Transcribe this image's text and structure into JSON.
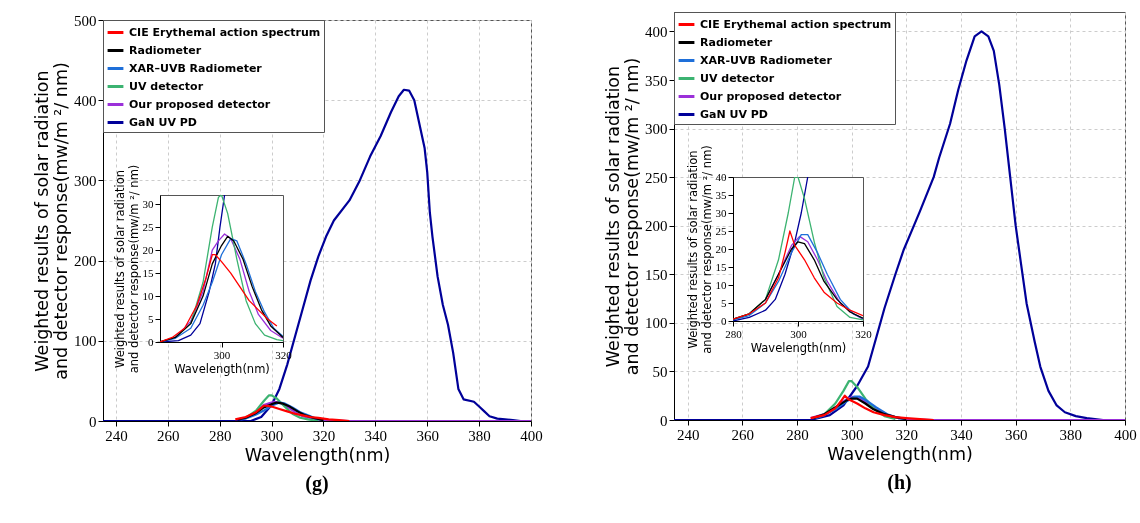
{
  "chart_data": [
    {
      "type": "line",
      "xlabel": "Wavelength(nm)",
      "ylabel": "Weighted results of solar radiation\nand detector response(mw/m ²/ nm)",
      "xlim": [
        235,
        400
      ],
      "ylim": [
        0,
        500
      ],
      "xticks": [
        240,
        260,
        280,
        300,
        320,
        340,
        360,
        380,
        400
      ],
      "yticks": [
        0,
        100,
        200,
        300,
        400,
        500
      ],
      "grid": true,
      "legend": "top left",
      "annotations": [
        "(g)"
      ],
      "series": [
        {
          "name": "CIE Erythemal action spectrum",
          "color": "#ff0000",
          "x": [
            286,
            290,
            294,
            297,
            298,
            300,
            303,
            306,
            309,
            312,
            315,
            318,
            322,
            326,
            330
          ],
          "values": [
            2,
            5,
            11,
            19,
            19,
            18,
            15,
            12,
            9,
            7,
            5,
            4,
            2,
            1,
            0
          ]
        },
        {
          "name": "Radiometer",
          "color": "#000000",
          "x": [
            287,
            290,
            294,
            297,
            300,
            302,
            304,
            307,
            310,
            313,
            316,
            320
          ],
          "values": [
            2,
            4,
            10,
            17,
            21,
            23,
            22,
            18,
            12,
            7,
            4,
            1
          ]
        },
        {
          "name": "XAR–UVB Radiometer",
          "color": "#1e6fd9",
          "x": [
            288,
            290,
            294,
            297,
            300,
            303,
            305,
            308,
            311,
            314,
            317,
            320
          ],
          "values": [
            2,
            3,
            8,
            13,
            19,
            23,
            22,
            17,
            11,
            7,
            3,
            1
          ]
        },
        {
          "name": "UV detector",
          "color": "#3cb371",
          "x": [
            290,
            294,
            297,
            299,
            300,
            302,
            305,
            308,
            311,
            314,
            318
          ],
          "values": [
            4,
            13,
            25,
            32,
            32,
            28,
            18,
            9,
            4,
            2,
            0
          ]
        },
        {
          "name": "Our proposed detector",
          "color": "#9b30d9",
          "x": [
            294,
            297,
            299,
            301,
            303,
            306,
            309,
            312,
            316,
            320,
            330,
            400
          ],
          "values": [
            11,
            20,
            22,
            24,
            23,
            18,
            11,
            6,
            3,
            1,
            0,
            0
          ]
        },
        {
          "name": "GaN UV PD",
          "color": "#000099",
          "x": [
            235,
            292,
            296,
            300,
            303,
            306,
            309,
            312,
            315,
            318,
            321,
            324,
            330,
            334,
            338,
            342,
            346,
            349,
            351,
            353,
            355,
            357,
            359,
            360,
            361,
            362,
            364,
            366,
            368,
            370,
            372,
            374,
            378,
            380,
            382,
            384,
            387,
            390,
            393,
            396
          ],
          "values": [
            0,
            0,
            5,
            20,
            40,
            70,
            105,
            140,
            175,
            205,
            230,
            250,
            275,
            300,
            330,
            355,
            385,
            405,
            413,
            412,
            400,
            370,
            340,
            310,
            260,
            230,
            180,
            145,
            120,
            85,
            40,
            27,
            24,
            18,
            12,
            6,
            3,
            2,
            1,
            0
          ]
        }
      ]
    },
    {
      "type": "line",
      "xlabel": "Wavelength(nm)",
      "ylabel": "Weighted results of solar radiation\nand detector response(mw/m ²/ nm)",
      "xlim": [
        280,
        320
      ],
      "ylim": [
        0,
        32
      ],
      "xticks": [
        300,
        320
      ],
      "yticks": [
        0,
        5,
        10,
        15,
        20,
        25,
        30
      ],
      "series": [
        {
          "color": "#ff0000",
          "x": [
            280,
            284,
            288,
            292,
            295,
            297,
            298,
            300,
            303,
            306,
            309,
            312,
            315,
            318
          ],
          "values": [
            0,
            1,
            3,
            8,
            14,
            19,
            19,
            17.5,
            15,
            12,
            9,
            7,
            5,
            3.5
          ]
        },
        {
          "color": "#000000",
          "x": [
            280,
            285,
            290,
            294,
            297,
            300,
            302,
            304,
            307,
            310,
            313,
            316,
            320
          ],
          "values": [
            0,
            1,
            4,
            10,
            17,
            21,
            23,
            22,
            18,
            12,
            7,
            3.5,
            1
          ]
        },
        {
          "color": "#1e6fd9",
          "x": [
            280,
            285,
            290,
            294,
            297,
            300,
            303,
            305,
            308,
            311,
            314,
            317,
            320
          ],
          "values": [
            0,
            0.8,
            3,
            8,
            13,
            19,
            22.5,
            22,
            17,
            11,
            6.5,
            3,
            1.2
          ]
        },
        {
          "color": "#3cb371",
          "x": [
            280,
            285,
            290,
            294,
            297,
            299,
            300,
            302,
            305,
            308,
            311,
            314,
            318,
            320
          ],
          "values": [
            0,
            1,
            4,
            13,
            25,
            31.5,
            32,
            28,
            18,
            9,
            4,
            1.5,
            0.5,
            0.3
          ]
        },
        {
          "color": "#9b30d9",
          "x": [
            280,
            285,
            290,
            294,
            297,
            299,
            301,
            303,
            306,
            309,
            312,
            316,
            320
          ],
          "values": [
            0,
            1,
            4.5,
            11,
            20,
            22,
            23.5,
            22.5,
            18,
            11,
            6,
            2.5,
            0.8
          ]
        },
        {
          "color": "#000099",
          "x": [
            280,
            286,
            290,
            293,
            296,
            298,
            299.5,
            301
          ],
          "values": [
            0,
            0.3,
            1.5,
            4,
            11,
            17,
            25,
            32
          ]
        }
      ]
    },
    {
      "type": "line",
      "xlabel": "Wavelength(nm)",
      "ylabel": "Weighted results of solar radiation\nand detector response(mw/m ²/ nm)",
      "xlim": [
        235,
        400
      ],
      "ylim": [
        0,
        420
      ],
      "xticks": [
        240,
        260,
        280,
        300,
        320,
        340,
        360,
        380,
        400
      ],
      "yticks": [
        0,
        50,
        100,
        150,
        200,
        250,
        300,
        350,
        400
      ],
      "grid": true,
      "legend": "top left",
      "annotations": [
        "(h)"
      ],
      "series": [
        {
          "name": "CIE Erythemal action spectrum",
          "color": "#ff0000",
          "x": [
            285,
            290,
            294,
            296,
            297.5,
            299,
            302,
            305,
            308,
            312,
            316,
            320,
            325,
            330
          ],
          "values": [
            2,
            5,
            12,
            19,
            25,
            21,
            17,
            12,
            8,
            5,
            3,
            2,
            1,
            0
          ]
        },
        {
          "name": "Radiometer",
          "color": "#000000",
          "x": [
            286,
            290,
            294,
            298,
            300,
            302,
            305,
            308,
            312,
            316,
            320
          ],
          "values": [
            2,
            6,
            13,
            20,
            22,
            22,
            17,
            11,
            6,
            3,
            1
          ]
        },
        {
          "name": "XAR-UVB Radiometer",
          "color": "#1e6fd9",
          "x": [
            287,
            290,
            294,
            298,
            301,
            303,
            306,
            309,
            313,
            317,
            320
          ],
          "values": [
            2,
            5,
            11,
            19,
            24,
            24,
            19,
            13,
            6,
            2,
            1
          ]
        },
        {
          "name": "UV detector",
          "color": "#3cb371",
          "x": [
            286,
            290,
            294,
            297,
            299,
            300,
            302,
            305,
            308,
            312,
            316
          ],
          "values": [
            2,
            6,
            17,
            30,
            40,
            40,
            34,
            22,
            12,
            4,
            1
          ]
        },
        {
          "name": "Our proposed detector",
          "color": "#9b30d9",
          "x": [
            285,
            290,
            294,
            298,
            300.5,
            303,
            306,
            309,
            313,
            317,
            320,
            330,
            400
          ],
          "values": [
            2,
            6,
            13,
            21,
            24,
            22,
            17,
            11,
            5,
            2,
            1,
            0,
            0
          ]
        },
        {
          "name": "GaN UV PD",
          "color": "#000099",
          "x": [
            235,
            285,
            292,
            297,
            302,
            306,
            309,
            312,
            316,
            319,
            322,
            325,
            330,
            332,
            336,
            339,
            342,
            345,
            347.5,
            350,
            352,
            354,
            356,
            358,
            360,
            362,
            364,
            367,
            369,
            372,
            375,
            378,
            382,
            386,
            392
          ],
          "values": [
            0,
            0,
            5,
            15,
            35,
            55,
            85,
            115,
            150,
            175,
            195,
            215,
            250,
            270,
            305,
            340,
            370,
            395,
            400,
            395,
            380,
            345,
            300,
            250,
            200,
            160,
            120,
            80,
            55,
            30,
            15,
            8,
            4,
            2,
            0
          ]
        }
      ]
    },
    {
      "type": "line",
      "xlabel": "Wavelength(nm)",
      "ylabel": "Weighted results of solar radiation\nand detector response(mw/m ²/ nm)",
      "xlim": [
        280,
        320
      ],
      "ylim": [
        0,
        40
      ],
      "xticks": [
        280,
        300,
        320
      ],
      "yticks": [
        0,
        5,
        10,
        15,
        20,
        25,
        30,
        35,
        40
      ],
      "series": [
        {
          "color": "#ff0000",
          "x": [
            280,
            285,
            290,
            294,
            296,
            297.5,
            299,
            302,
            305,
            308,
            312,
            316,
            320
          ],
          "values": [
            0.5,
            2,
            5,
            12,
            19,
            25,
            21,
            17,
            12,
            8,
            5,
            3,
            1.5
          ]
        },
        {
          "color": "#000000",
          "x": [
            280,
            285,
            290,
            294,
            298,
            300,
            302,
            305,
            308,
            312,
            316,
            320
          ],
          "values": [
            0.5,
            2,
            6,
            13,
            20,
            22,
            21.5,
            17,
            11,
            6,
            2.5,
            0.8
          ]
        },
        {
          "color": "#1e6fd9",
          "x": [
            280,
            285,
            290,
            294,
            298,
            301,
            303,
            306,
            309,
            313,
            317,
            320
          ],
          "values": [
            0.3,
            1.5,
            5,
            11,
            19,
            24,
            24,
            19,
            13,
            6,
            2,
            0.7
          ]
        },
        {
          "color": "#3cb371",
          "x": [
            280,
            285,
            290,
            294,
            297,
            299,
            300,
            302,
            305,
            308,
            312,
            316,
            320
          ],
          "values": [
            0.5,
            2,
            6,
            17,
            30,
            40,
            40,
            34,
            22,
            12,
            4,
            1,
            0.3
          ]
        },
        {
          "color": "#9b30d9",
          "x": [
            290,
            294,
            298,
            300.5,
            303,
            306,
            309,
            313,
            317,
            320
          ],
          "values": [
            6,
            13,
            21,
            23.5,
            22,
            17,
            11,
            5,
            2,
            0.5
          ]
        },
        {
          "color": "#000099",
          "x": [
            280,
            285,
            290,
            293,
            296,
            299,
            301,
            303
          ],
          "values": [
            0,
            1,
            3,
            6,
            13,
            22,
            30,
            40
          ]
        }
      ]
    }
  ]
}
